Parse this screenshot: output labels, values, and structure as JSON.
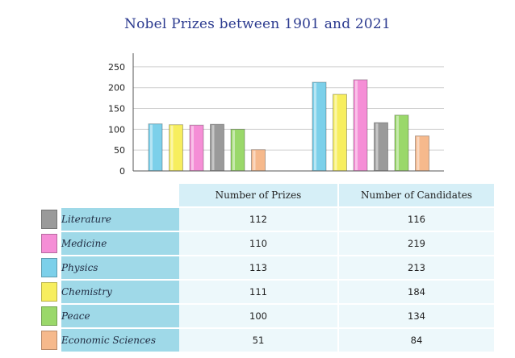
{
  "chart_data": {
    "type": "bar",
    "title": "Nobel Prizes between 1901 and 2021",
    "groups": [
      "Number of Prizes",
      "Number of Candidates"
    ],
    "series": [
      {
        "name": "Physics",
        "color": "#7cd0ea",
        "values": [
          113,
          213
        ]
      },
      {
        "name": "Chemistry",
        "color": "#f7ee5e",
        "values": [
          111,
          184
        ]
      },
      {
        "name": "Medicine",
        "color": "#f58ed6",
        "values": [
          110,
          219
        ]
      },
      {
        "name": "Literature",
        "color": "#9a9a9a",
        "values": [
          112,
          116
        ]
      },
      {
        "name": "Peace",
        "color": "#9ad86a",
        "values": [
          100,
          134
        ]
      },
      {
        "name": "Economic Sciences",
        "color": "#f6b98c",
        "values": [
          51,
          84
        ]
      }
    ],
    "ylim": [
      0,
      275
    ],
    "yticks": [
      "0",
      "50",
      "100",
      "150",
      "200",
      "250"
    ],
    "grid": true,
    "legend": "table-below"
  },
  "table": {
    "headers": [
      "Number of Prizes",
      "Number of Candidates"
    ],
    "rows": [
      {
        "name": "Literature",
        "prizes": "112",
        "candidates": "116",
        "color": "#9a9a9a"
      },
      {
        "name": "Medicine",
        "prizes": "110",
        "candidates": "219",
        "color": "#f58ed6"
      },
      {
        "name": "Physics",
        "prizes": "113",
        "candidates": "213",
        "color": "#7cd0ea"
      },
      {
        "name": "Chemistry",
        "prizes": "111",
        "candidates": "184",
        "color": "#f7ee5e"
      },
      {
        "name": "Peace",
        "prizes": "100",
        "candidates": "134",
        "color": "#9ad86a"
      },
      {
        "name": "Economic Sciences",
        "prizes": "51",
        "candidates": "84",
        "color": "#f6b98c"
      }
    ]
  }
}
